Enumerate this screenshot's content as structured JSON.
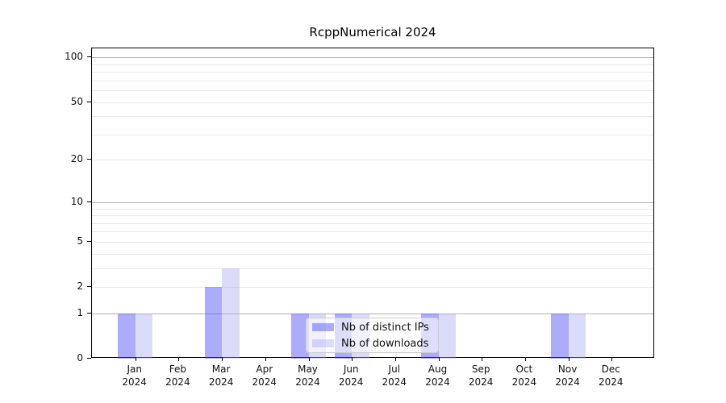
{
  "chart_data": {
    "type": "bar",
    "title": "RcppNumerical 2024",
    "categories": [
      "Jan",
      "Feb",
      "Mar",
      "Apr",
      "May",
      "Jun",
      "Jul",
      "Aug",
      "Sep",
      "Oct",
      "Nov",
      "Dec"
    ],
    "year_label": "2024",
    "series": [
      {
        "name": "Nb of distinct IPs",
        "fill": "rgba(71,71,239,0.45)",
        "solid_hex": "#acacf8",
        "values": [
          1,
          0,
          2,
          0,
          1,
          1,
          0,
          1,
          0,
          0,
          1,
          0
        ]
      },
      {
        "name": "Nb of downloads",
        "fill": "rgba(165,165,243,0.40)",
        "solid_hex": "#dbdbfa",
        "values": [
          1,
          0,
          3,
          0,
          1,
          1,
          0,
          1,
          0,
          0,
          1,
          0
        ]
      }
    ],
    "xlabel": "",
    "ylabel": "",
    "y_scale": "log1p",
    "y_ticks": [
      0,
      1,
      2,
      5,
      10,
      20,
      50,
      100
    ],
    "ylim": [
      0,
      115
    ],
    "grid": "horizontal log-decade gridlines",
    "legend_position": "inside-bottom-center",
    "colors": {
      "axis": "#000000",
      "grid_major": "#b3b3b3",
      "grid_minor": "#e9e9e9",
      "legend_border": "#cccccc"
    }
  }
}
